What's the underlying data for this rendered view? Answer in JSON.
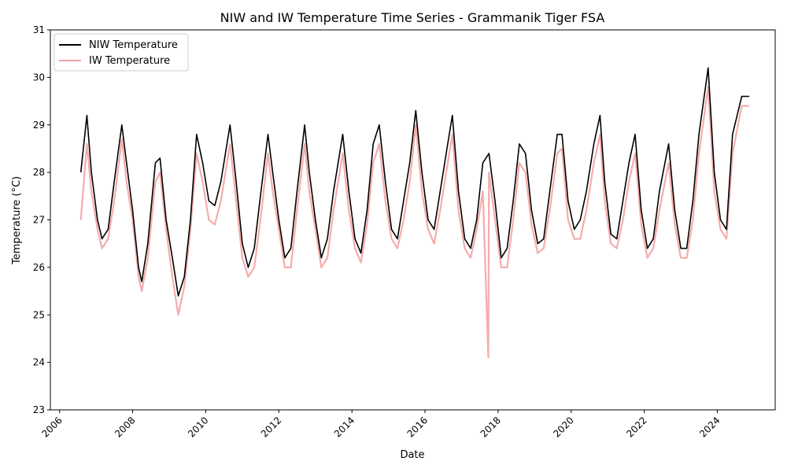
{
  "chart_data": {
    "type": "line",
    "title": "NIW and IW Temperature Time Series - Grammanik Tiger FSA",
    "xlabel": "Date",
    "ylabel": "Temperature (°C)",
    "xlim": [
      "2005-10-01",
      "2025-08-01"
    ],
    "ylim": [
      23,
      31
    ],
    "x_ticks": [
      "2006",
      "2008",
      "2010",
      "2012",
      "2014",
      "2016",
      "2018",
      "2020",
      "2022",
      "2024"
    ],
    "y_ticks": [
      23,
      24,
      25,
      26,
      27,
      28,
      29,
      30,
      31
    ],
    "grid": false,
    "legend_position": "upper-left",
    "series": [
      {
        "name": "NIW Temperature",
        "color": "#000000",
        "x": [
          "2006-08-01",
          "2006-10-01",
          "2006-11-15",
          "2007-01-15",
          "2007-03-01",
          "2007-05-01",
          "2007-07-01",
          "2007-09-15",
          "2007-11-01",
          "2008-01-01",
          "2008-03-01",
          "2008-04-01",
          "2008-06-01",
          "2008-08-15",
          "2008-10-01",
          "2008-12-01",
          "2009-02-01",
          "2009-04-01",
          "2009-06-01",
          "2009-08-01",
          "2009-10-01",
          "2009-12-01",
          "2010-02-01",
          "2010-04-01",
          "2010-06-01",
          "2010-09-01",
          "2010-11-01",
          "2011-01-01",
          "2011-03-01",
          "2011-05-01",
          "2011-07-01",
          "2011-09-15",
          "2011-11-01",
          "2012-01-01",
          "2012-03-01",
          "2012-05-01",
          "2012-07-01",
          "2012-09-15",
          "2012-11-01",
          "2013-01-01",
          "2013-03-01",
          "2013-05-01",
          "2013-07-01",
          "2013-10-01",
          "2013-12-01",
          "2014-02-01",
          "2014-04-01",
          "2014-06-01",
          "2014-08-01",
          "2014-10-01",
          "2014-12-01",
          "2015-02-01",
          "2015-04-01",
          "2015-06-01",
          "2015-08-01",
          "2015-10-01",
          "2015-12-01",
          "2016-02-01",
          "2016-04-01",
          "2016-06-01",
          "2016-08-15",
          "2016-10-01",
          "2016-12-01",
          "2017-02-01",
          "2017-04-01",
          "2017-06-01",
          "2017-08-01",
          "2017-10-01",
          "2017-12-01",
          "2018-02-01",
          "2018-04-01",
          "2018-06-01",
          "2018-08-01",
          "2018-10-01",
          "2018-12-01",
          "2019-02-01",
          "2019-04-01",
          "2019-06-01",
          "2019-08-15",
          "2019-10-01",
          "2019-12-01",
          "2020-02-01",
          "2020-04-01",
          "2020-06-01",
          "2020-08-15",
          "2020-10-15",
          "2020-12-01",
          "2021-02-01",
          "2021-04-01",
          "2021-06-01",
          "2021-08-01",
          "2021-10-01",
          "2021-12-01",
          "2022-02-01",
          "2022-04-01",
          "2022-06-01",
          "2022-09-01",
          "2022-11-01",
          "2023-01-01",
          "2023-03-01",
          "2023-05-01",
          "2023-07-01",
          "2023-10-01",
          "2023-12-01",
          "2024-02-01",
          "2024-04-01",
          "2024-06-01",
          "2024-09-01",
          "2024-11-15"
        ],
        "values": [
          28.0,
          29.2,
          28.0,
          27.0,
          26.6,
          26.8,
          27.8,
          29.0,
          28.2,
          27.2,
          26.0,
          25.7,
          26.5,
          28.2,
          28.3,
          27.0,
          26.2,
          25.4,
          25.8,
          27.0,
          28.8,
          28.2,
          27.4,
          27.3,
          27.8,
          29.0,
          27.8,
          26.5,
          26.0,
          26.4,
          27.5,
          28.8,
          28.0,
          27.0,
          26.2,
          26.4,
          27.6,
          29.0,
          28.0,
          27.0,
          26.2,
          26.6,
          27.6,
          28.8,
          27.6,
          26.6,
          26.3,
          27.2,
          28.6,
          29.0,
          27.8,
          26.8,
          26.6,
          27.4,
          28.2,
          29.3,
          28.0,
          27.0,
          26.8,
          27.6,
          28.6,
          29.2,
          27.6,
          26.6,
          26.4,
          27.0,
          28.2,
          28.4,
          27.4,
          26.2,
          26.4,
          27.4,
          28.6,
          28.4,
          27.2,
          26.5,
          26.6,
          27.6,
          28.8,
          28.8,
          27.4,
          26.8,
          27.0,
          27.6,
          28.6,
          29.2,
          27.8,
          26.7,
          26.6,
          27.4,
          28.2,
          28.8,
          27.2,
          26.4,
          26.6,
          27.6,
          28.6,
          27.2,
          26.4,
          26.4,
          27.4,
          28.8,
          30.2,
          28.0,
          27.0,
          26.8,
          28.8,
          29.6,
          29.6
        ]
      },
      {
        "name": "IW Temperature",
        "color": "#f08080",
        "x": [
          "2006-08-01",
          "2006-10-01",
          "2006-11-15",
          "2007-01-15",
          "2007-03-01",
          "2007-05-01",
          "2007-07-01",
          "2007-09-15",
          "2007-11-01",
          "2008-01-01",
          "2008-03-01",
          "2008-04-01",
          "2008-06-01",
          "2008-08-15",
          "2008-10-01",
          "2008-12-01",
          "2009-02-01",
          "2009-04-01",
          "2009-06-01",
          "2009-08-01",
          "2009-10-01",
          "2009-12-01",
          "2010-02-01",
          "2010-04-01",
          "2010-06-01",
          "2010-09-01",
          "2010-11-01",
          "2011-01-01",
          "2011-03-01",
          "2011-05-01",
          "2011-07-01",
          "2011-09-15",
          "2011-11-01",
          "2012-01-01",
          "2012-03-01",
          "2012-05-01",
          "2012-07-01",
          "2012-09-15",
          "2012-11-01",
          "2013-01-01",
          "2013-03-01",
          "2013-05-01",
          "2013-07-01",
          "2013-10-01",
          "2013-12-01",
          "2014-02-01",
          "2014-04-01",
          "2014-06-01",
          "2014-08-01",
          "2014-10-01",
          "2014-12-01",
          "2015-02-01",
          "2015-04-01",
          "2015-06-01",
          "2015-08-01",
          "2015-10-01",
          "2015-12-01",
          "2016-02-01",
          "2016-04-01",
          "2016-06-01",
          "2016-08-15",
          "2016-10-01",
          "2016-12-01",
          "2017-02-01",
          "2017-04-01",
          "2017-06-01",
          "2017-08-01",
          "2017-09-25",
          "2017-10-01",
          "2017-12-01",
          "2018-02-01",
          "2018-04-01",
          "2018-06-01",
          "2018-08-01",
          "2018-10-01",
          "2018-12-01",
          "2019-02-01",
          "2019-04-01",
          "2019-06-01",
          "2019-08-15",
          "2019-10-01",
          "2019-12-01",
          "2020-02-01",
          "2020-04-01",
          "2020-06-01",
          "2020-08-15",
          "2020-10-15",
          "2020-12-01",
          "2021-02-01",
          "2021-04-01",
          "2021-06-01",
          "2021-08-01",
          "2021-10-01",
          "2021-12-01",
          "2022-02-01",
          "2022-04-01",
          "2022-06-01",
          "2022-09-01",
          "2022-11-01",
          "2023-01-01",
          "2023-03-01",
          "2023-05-01",
          "2023-07-01",
          "2023-10-01",
          "2023-12-01",
          "2024-02-01",
          "2024-04-01",
          "2024-06-01",
          "2024-09-01",
          "2024-11-15"
        ],
        "values": [
          27.0,
          28.6,
          27.6,
          26.8,
          26.4,
          26.6,
          27.4,
          28.7,
          27.8,
          27.0,
          25.8,
          25.5,
          26.2,
          27.8,
          28.0,
          26.8,
          25.8,
          25.0,
          25.6,
          26.8,
          28.4,
          27.8,
          27.0,
          26.9,
          27.4,
          28.6,
          27.4,
          26.2,
          25.8,
          26.0,
          27.0,
          28.4,
          27.6,
          26.8,
          26.0,
          26.0,
          27.2,
          28.6,
          27.6,
          26.8,
          26.0,
          26.2,
          27.2,
          28.4,
          27.2,
          26.4,
          26.1,
          26.9,
          28.2,
          28.6,
          27.4,
          26.6,
          26.4,
          27.0,
          27.8,
          29.0,
          27.6,
          26.8,
          26.5,
          27.2,
          28.2,
          28.8,
          27.2,
          26.4,
          26.2,
          26.8,
          27.6,
          24.1,
          28.0,
          27.0,
          26.0,
          26.0,
          27.0,
          28.2,
          28.0,
          26.9,
          26.3,
          26.4,
          27.2,
          28.4,
          28.5,
          27.0,
          26.6,
          26.6,
          27.2,
          28.2,
          28.8,
          27.4,
          26.5,
          26.4,
          27.0,
          27.8,
          28.4,
          26.9,
          26.2,
          26.4,
          27.2,
          28.2,
          26.9,
          26.2,
          26.2,
          27.0,
          28.4,
          29.8,
          27.6,
          26.8,
          26.6,
          28.4,
          29.4,
          29.4
        ]
      }
    ]
  }
}
